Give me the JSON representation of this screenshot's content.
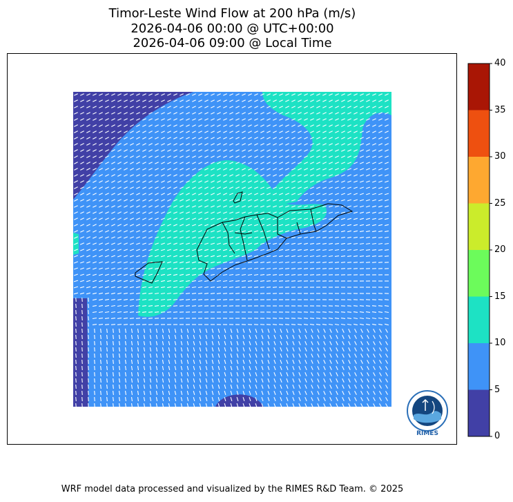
{
  "title": {
    "line1": "Timor-Leste Wind Flow at 200 hPa (m/s)",
    "line2": "2026-04-06 00:00 @ UTC+00:00",
    "line3": "2026-04-06 09:00 @ Local Time"
  },
  "footer": "WRF model data processed and visualized by the RIMES R&D Team. © 2025",
  "logo": {
    "text": "RIMES",
    "icon": "rimes-globe-logo"
  },
  "colorbar": {
    "ticks": [
      "0",
      "5",
      "10",
      "15",
      "20",
      "25",
      "30",
      "35",
      "40"
    ],
    "bins": [
      {
        "min": 0,
        "max": 5,
        "color": "#4140a6"
      },
      {
        "min": 5,
        "max": 10,
        "color": "#3f93f7"
      },
      {
        "min": 10,
        "max": 15,
        "color": "#1de2c4"
      },
      {
        "min": 15,
        "max": 20,
        "color": "#6cfb5b"
      },
      {
        "min": 20,
        "max": 25,
        "color": "#cbec2b"
      },
      {
        "min": 25,
        "max": 30,
        "color": "#fea830"
      },
      {
        "min": 30,
        "max": 35,
        "color": "#ee5010"
      },
      {
        "min": 35,
        "max": 40,
        "color": "#a91605"
      }
    ]
  },
  "map": {
    "field": "wind speed",
    "units": "m/s",
    "arrow_color": "#ffffff",
    "border_color": "#000000",
    "regions": [
      {
        "name": "calm-band-northwest",
        "speed_class": "0-5"
      },
      {
        "name": "calm-strip-west",
        "speed_class": "0-5"
      },
      {
        "name": "calm-patch-south",
        "speed_class": "0-5"
      },
      {
        "name": "fast-band-north",
        "speed_class": "10-15"
      },
      {
        "name": "fast-tongue-central",
        "speed_class": "10-15"
      },
      {
        "name": "background",
        "speed_class": "5-10"
      }
    ]
  }
}
